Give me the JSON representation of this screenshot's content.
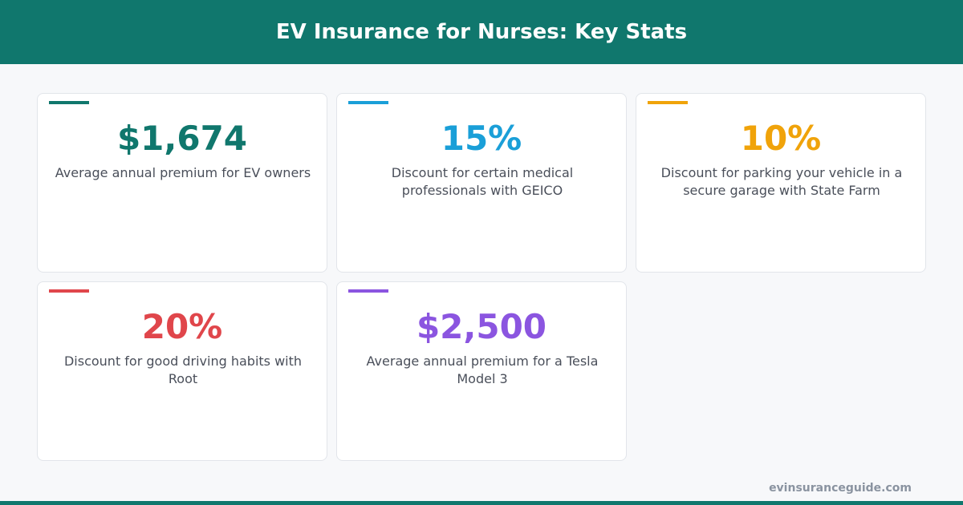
{
  "header": {
    "title": "EV Insurance for Nurses: Key Stats"
  },
  "stats": [
    {
      "value": "$1,674",
      "description": "Average annual premium for EV owners",
      "color": "#10776d"
    },
    {
      "value": "15%",
      "description": "Discount for certain medical professionals with GEICO",
      "color": "#1a9fd8"
    },
    {
      "value": "10%",
      "description": "Discount for parking your vehicle in a secure garage with State Farm",
      "color": "#f0a30a"
    },
    {
      "value": "20%",
      "description": "Discount for good driving habits with Root",
      "color": "#e0464b"
    },
    {
      "value": "$2,500",
      "description": "Average annual premium for a Tesla Model 3",
      "color": "#8b55e0"
    }
  ],
  "footer": {
    "source": "evinsuranceguide.com"
  }
}
